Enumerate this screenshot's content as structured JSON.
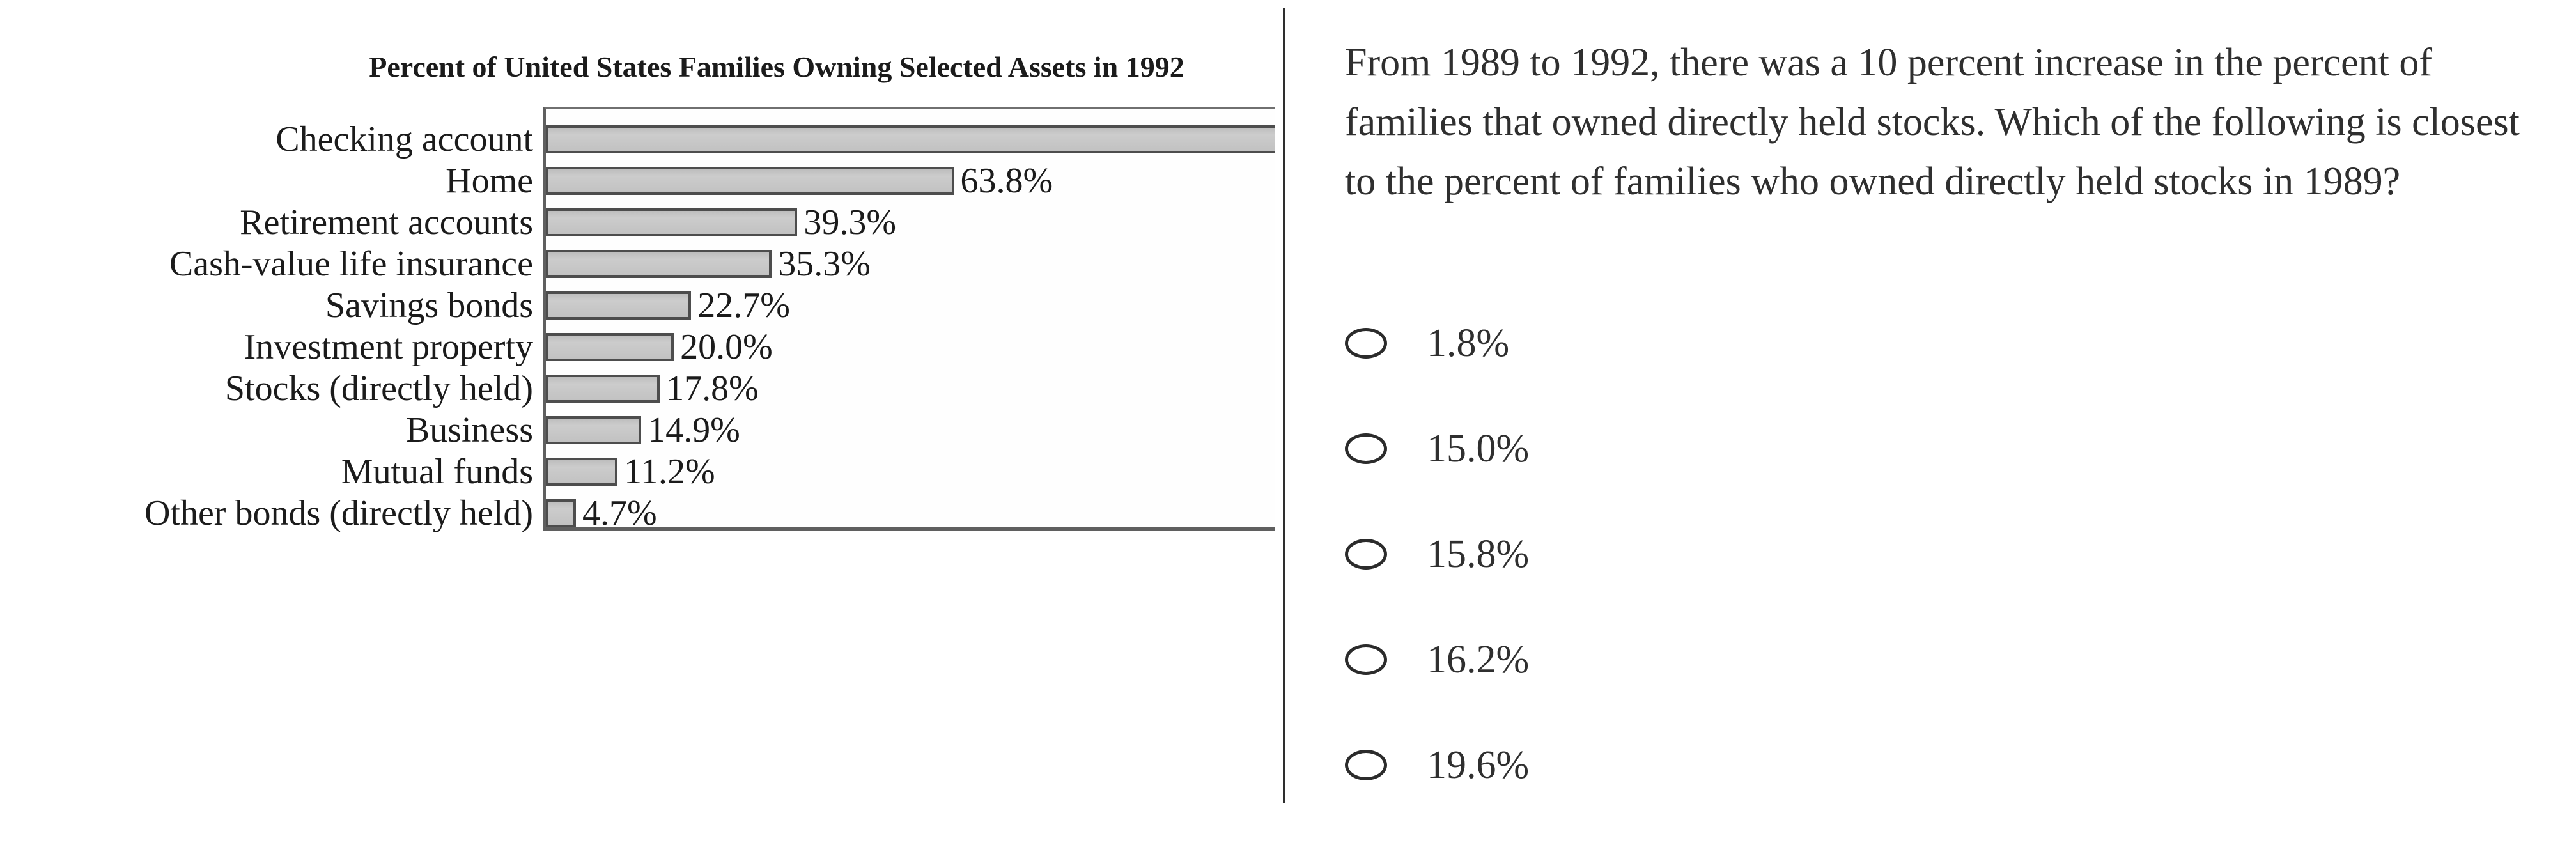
{
  "chart_data": {
    "type": "bar",
    "orientation": "horizontal",
    "title": "Percent of United States Families Owning Selected Assets in 1992",
    "unit": "percent of families",
    "axis_max_implied": 114,
    "grid": false,
    "legend": false,
    "categories": [
      "Checking account",
      "Home",
      "Retirement accounts",
      "Cash-value life insurance",
      "Savings bonds",
      "Investment property",
      "Stocks (directly held)",
      "Business",
      "Mutual funds",
      "Other bonds (directly held)"
    ],
    "rows": [
      {
        "label": "Checking account",
        "value": null,
        "value_label": "",
        "clipped": true
      },
      {
        "label": "Home",
        "value": 63.8,
        "value_label": "63.8%",
        "clipped": false
      },
      {
        "label": "Retirement accounts",
        "value": 39.3,
        "value_label": "39.3%",
        "clipped": false
      },
      {
        "label": "Cash-value life insurance",
        "value": 35.3,
        "value_label": "35.3%",
        "clipped": false
      },
      {
        "label": "Savings bonds",
        "value": 22.7,
        "value_label": "22.7%",
        "clipped": false
      },
      {
        "label": "Investment property",
        "value": 20.0,
        "value_label": "20.0%",
        "clipped": false
      },
      {
        "label": "Stocks (directly held)",
        "value": 17.8,
        "value_label": "17.8%",
        "clipped": false
      },
      {
        "label": "Business",
        "value": 14.9,
        "value_label": "14.9%",
        "clipped": false
      },
      {
        "label": "Mutual funds",
        "value": 11.2,
        "value_label": "11.2%",
        "clipped": false
      },
      {
        "label": "Other bonds (directly held)",
        "value": 4.7,
        "value_label": "4.7%",
        "clipped": false
      }
    ]
  },
  "question": {
    "text": "From 1989 to 1992, there was a 10 percent increase in the percent of families that owned directly held stocks. Which of the following is closest to the percent of families who owned directly held stocks in 1989?",
    "options": [
      {
        "label": "1.8%",
        "selected": false
      },
      {
        "label": "15.0%",
        "selected": false
      },
      {
        "label": "15.8%",
        "selected": false
      },
      {
        "label": "16.2%",
        "selected": false
      },
      {
        "label": "19.6%",
        "selected": false
      }
    ]
  },
  "colors": {
    "bar_fill": "#c4c4c4",
    "bar_border": "#4d4d4d",
    "axis_frame": "#5f5f5f",
    "divider": "#2e2e2e",
    "chart_text": "#1b1b1b",
    "question_text": "#2f2f2f",
    "background": "#ffffff"
  }
}
